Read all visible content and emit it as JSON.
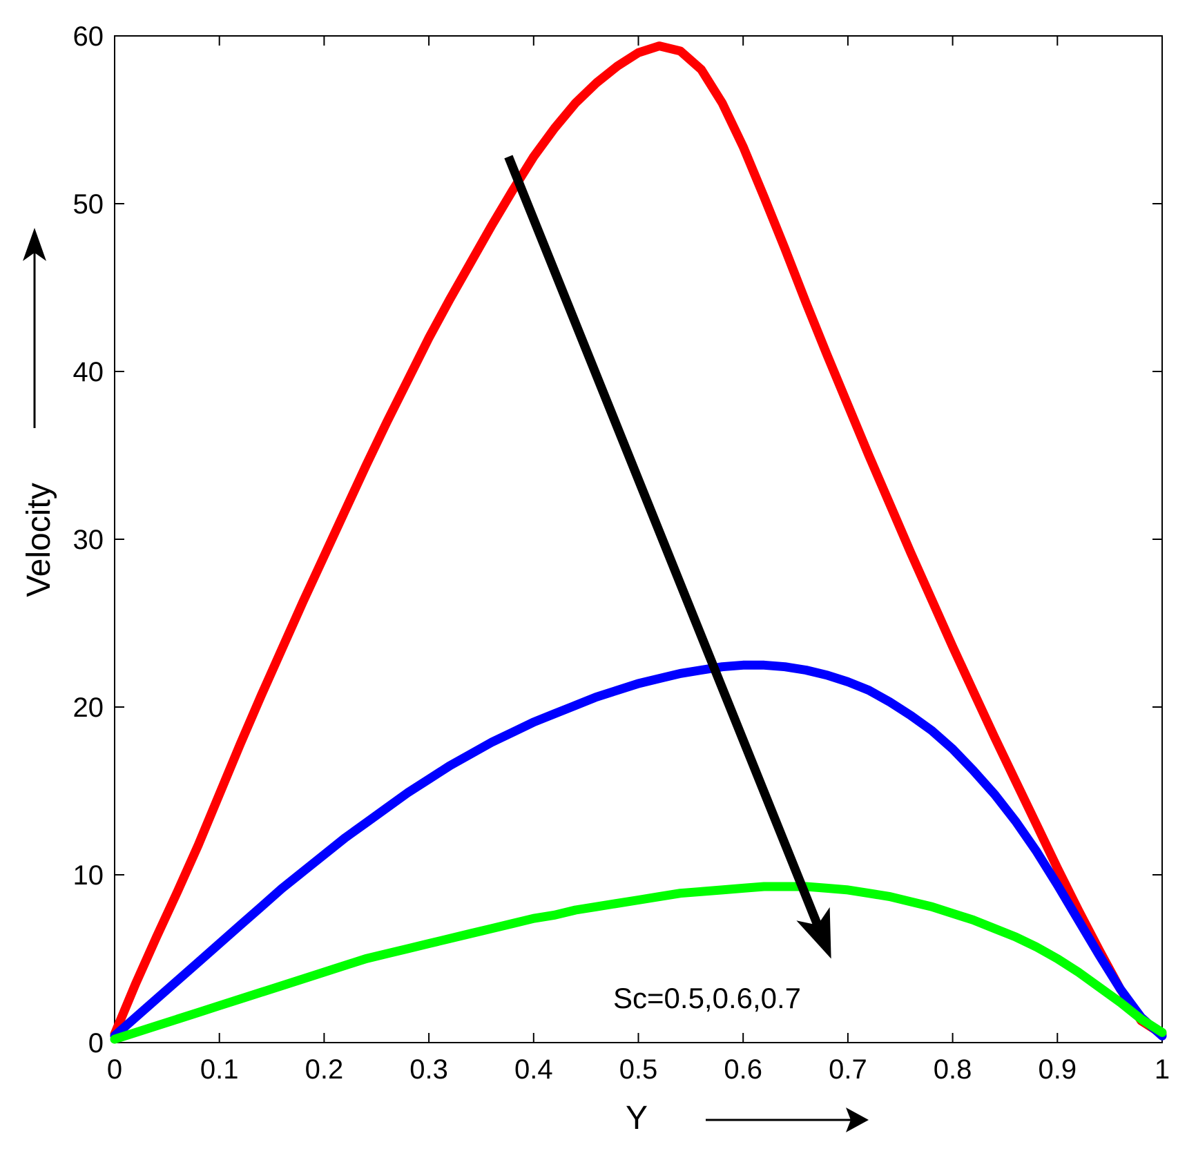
{
  "chart_data": {
    "type": "line",
    "title": "",
    "xlabel": "Y",
    "ylabel": "Velocity",
    "xlim": [
      0,
      1
    ],
    "ylim": [
      0,
      60
    ],
    "xticks": [
      "0",
      "0.1",
      "0.2",
      "0.3",
      "0.4",
      "0.5",
      "0.6",
      "0.7",
      "0.8",
      "0.9",
      "1"
    ],
    "yticks": [
      "0",
      "10",
      "20",
      "30",
      "40",
      "50",
      "60"
    ],
    "grid": false,
    "annotation": {
      "text": "Sc=0.5,0.6,0.7",
      "arrow_from": [
        0.376,
        52.8
      ],
      "arrow_to": [
        0.684,
        5.0
      ]
    },
    "series": [
      {
        "color": "#ff0000",
        "x": [
          0,
          0.02,
          0.04,
          0.06,
          0.08,
          0.1,
          0.12,
          0.14,
          0.16,
          0.18,
          0.2,
          0.22,
          0.24,
          0.26,
          0.28,
          0.3,
          0.32,
          0.34,
          0.36,
          0.38,
          0.4,
          0.42,
          0.44,
          0.46,
          0.48,
          0.5,
          0.52,
          0.54,
          0.56,
          0.58,
          0.6,
          0.62,
          0.64,
          0.66,
          0.68,
          0.7,
          0.72,
          0.74,
          0.76,
          0.78,
          0.8,
          0.82,
          0.84,
          0.86,
          0.88,
          0.9,
          0.92,
          0.94,
          0.96,
          0.98,
          1.0
        ],
        "y": [
          0.5,
          3.5,
          6.3,
          9.0,
          11.8,
          14.8,
          17.8,
          20.7,
          23.5,
          26.3,
          29.0,
          31.7,
          34.4,
          37.0,
          39.5,
          42.0,
          44.3,
          46.5,
          48.7,
          50.8,
          52.8,
          54.5,
          56.0,
          57.2,
          58.2,
          59.0,
          59.4,
          59.1,
          58.0,
          56.0,
          53.4,
          50.4,
          47.3,
          44.1,
          41.0,
          38.0,
          35.0,
          32.1,
          29.2,
          26.4,
          23.6,
          20.9,
          18.2,
          15.6,
          13.0,
          10.4,
          7.9,
          5.5,
          3.2,
          1.3,
          0.5
        ]
      },
      {
        "color": "#0000ff",
        "x": [
          0,
          0.02,
          0.04,
          0.06,
          0.08,
          0.1,
          0.12,
          0.14,
          0.16,
          0.18,
          0.2,
          0.22,
          0.24,
          0.26,
          0.28,
          0.3,
          0.32,
          0.34,
          0.36,
          0.38,
          0.4,
          0.42,
          0.44,
          0.46,
          0.48,
          0.5,
          0.52,
          0.54,
          0.56,
          0.58,
          0.6,
          0.62,
          0.64,
          0.66,
          0.68,
          0.7,
          0.72,
          0.74,
          0.76,
          0.78,
          0.8,
          0.82,
          0.84,
          0.86,
          0.88,
          0.9,
          0.92,
          0.94,
          0.96,
          0.98,
          1.0
        ],
        "y": [
          0.4,
          1.5,
          2.6,
          3.7,
          4.8,
          5.9,
          7.0,
          8.1,
          9.2,
          10.2,
          11.2,
          12.2,
          13.1,
          14.0,
          14.9,
          15.7,
          16.5,
          17.2,
          17.9,
          18.5,
          19.1,
          19.6,
          20.1,
          20.6,
          21.0,
          21.4,
          21.7,
          22.0,
          22.2,
          22.4,
          22.5,
          22.5,
          22.4,
          22.2,
          21.9,
          21.5,
          21.0,
          20.3,
          19.5,
          18.6,
          17.5,
          16.2,
          14.8,
          13.2,
          11.4,
          9.4,
          7.3,
          5.2,
          3.2,
          1.5,
          0.4
        ]
      },
      {
        "color": "#00ff00",
        "x": [
          0,
          0.02,
          0.04,
          0.06,
          0.08,
          0.1,
          0.12,
          0.14,
          0.16,
          0.18,
          0.2,
          0.22,
          0.24,
          0.26,
          0.28,
          0.3,
          0.32,
          0.34,
          0.36,
          0.38,
          0.4,
          0.42,
          0.44,
          0.46,
          0.48,
          0.5,
          0.52,
          0.54,
          0.56,
          0.58,
          0.6,
          0.62,
          0.64,
          0.66,
          0.68,
          0.7,
          0.72,
          0.74,
          0.76,
          0.78,
          0.8,
          0.82,
          0.84,
          0.86,
          0.88,
          0.9,
          0.92,
          0.94,
          0.96,
          0.98,
          1.0
        ],
        "y": [
          0.2,
          0.6,
          1.0,
          1.4,
          1.8,
          2.2,
          2.6,
          3.0,
          3.4,
          3.8,
          4.2,
          4.6,
          5.0,
          5.3,
          5.6,
          5.9,
          6.2,
          6.5,
          6.8,
          7.1,
          7.4,
          7.6,
          7.9,
          8.1,
          8.3,
          8.5,
          8.7,
          8.9,
          9.0,
          9.1,
          9.2,
          9.3,
          9.3,
          9.3,
          9.2,
          9.1,
          8.9,
          8.7,
          8.4,
          8.1,
          7.7,
          7.3,
          6.8,
          6.3,
          5.7,
          5.0,
          4.2,
          3.3,
          2.4,
          1.4,
          0.6
        ]
      }
    ]
  }
}
